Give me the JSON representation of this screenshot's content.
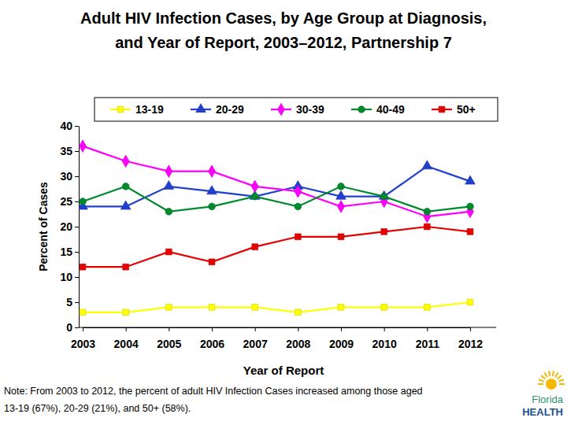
{
  "chart_data": {
    "type": "line",
    "title": [
      "Adult HIV Infection Cases, by Age Group at Diagnosis,",
      "and Year of Report, 2003–2012, Partnership 7"
    ],
    "x_label": "Year of Report",
    "y_label": "Percent of Cases",
    "categories": [
      "2003",
      "2004",
      "2005",
      "2006",
      "2007",
      "2008",
      "2009",
      "2010",
      "2011",
      "2012"
    ],
    "series": [
      {
        "name": "13-19",
        "color": "#ffff00",
        "marker": "square",
        "values": [
          3,
          3,
          4,
          4,
          4,
          3,
          4,
          4,
          4,
          5
        ]
      },
      {
        "name": "20-29",
        "color": "#1f3fcf",
        "marker": "triangle",
        "values": [
          24,
          24,
          28,
          27,
          26,
          28,
          26,
          26,
          32,
          29
        ]
      },
      {
        "name": "30-39",
        "color": "#ff00ff",
        "marker": "diamond",
        "values": [
          36,
          33,
          31,
          31,
          28,
          27,
          24,
          25,
          22,
          23
        ]
      },
      {
        "name": "40-49",
        "color": "#008a2e",
        "marker": "circle",
        "values": [
          25,
          28,
          23,
          24,
          26,
          24,
          28,
          26,
          23,
          24
        ]
      },
      {
        "name": "50+",
        "color": "#e60000",
        "marker": "square",
        "values": [
          12,
          12,
          15,
          13,
          16,
          18,
          18,
          19,
          20,
          19
        ]
      }
    ],
    "ylim": [
      0,
      40
    ],
    "yticks": [
      0,
      5,
      10,
      15,
      20,
      25,
      30,
      35,
      40
    ],
    "grid": false,
    "legend": "top",
    "annotations": [
      "Note:  From 2003 to 2012, the percent of adult HIV Infection Cases increased among those aged",
      "13-19 (67%), 20-29 (21%), and 50+ (58%)."
    ],
    "logo_text": [
      "Florida",
      "HEALTH"
    ]
  }
}
